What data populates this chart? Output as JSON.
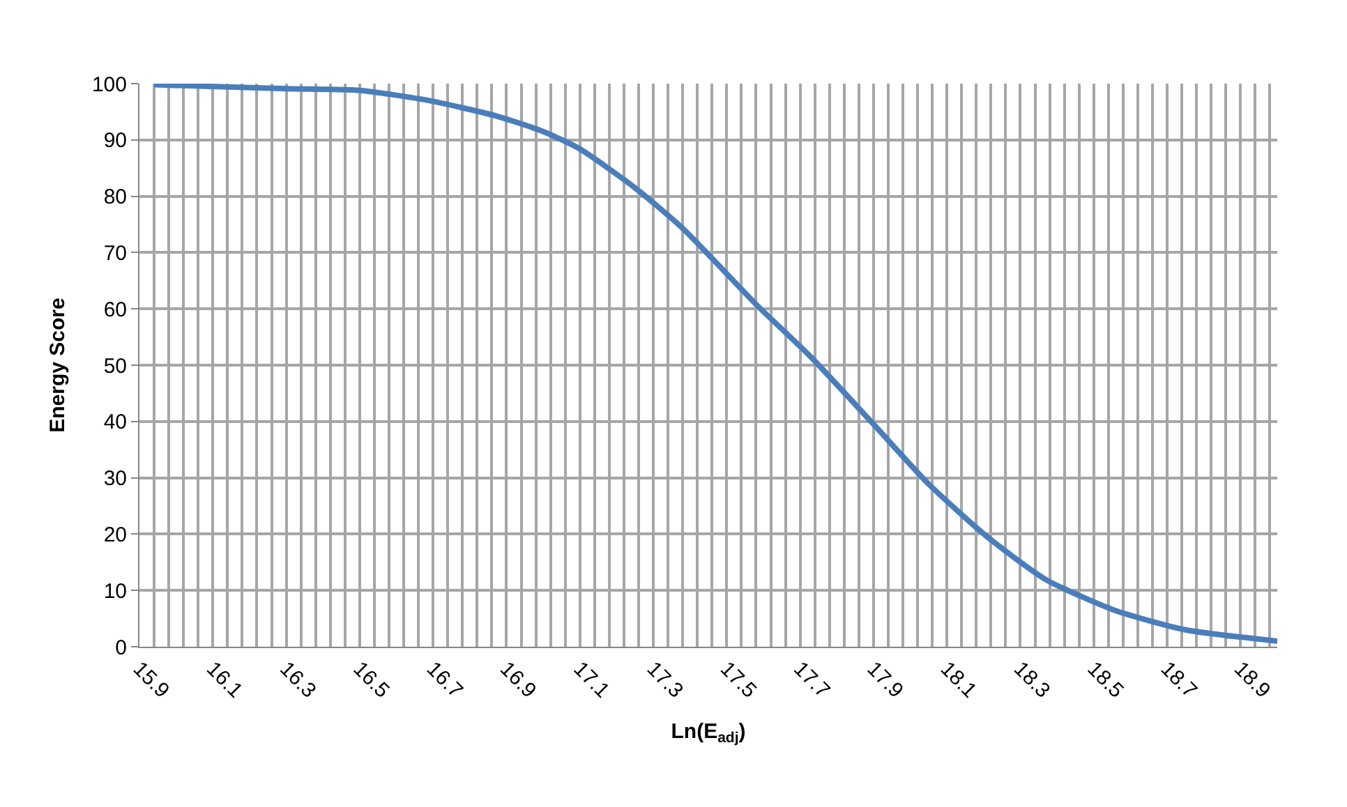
{
  "chart_data": {
    "type": "line",
    "xlabel": "Ln(E$_{adj}$)",
    "ylabel": "Energy Score",
    "x": [
      15.94,
      16.3,
      16.5,
      16.68,
      16.87,
      17.0,
      17.1,
      17.25,
      17.38,
      17.58,
      17.73,
      17.9,
      18.05,
      18.21,
      18.37,
      18.56,
      18.75,
      19.0
    ],
    "series": [
      {
        "color": "#4a7ebb",
        "values": [
          99.8,
          99.1,
          98.8,
          97.1,
          94.3,
          91.5,
          88.4,
          81.5,
          74.3,
          60.8,
          51.4,
          39.5,
          28.9,
          19.5,
          11.9,
          6.4,
          3.0,
          1.0
        ]
      }
    ],
    "xlim": [
      15.9,
      19.0
    ],
    "xticks": [
      15.9,
      {
        "value": 15.94,
        "label": null
      },
      {
        "value": 15.98,
        "label": null
      },
      {
        "value": 16.02,
        "label": null
      },
      {
        "value": 16.06,
        "label": null
      },
      16.1,
      {
        "value": 16.14,
        "label": null
      },
      {
        "value": 16.18,
        "label": null
      },
      {
        "value": 16.22,
        "label": null
      },
      {
        "value": 16.26,
        "label": null
      },
      16.3,
      {
        "value": 16.34,
        "label": null
      },
      {
        "value": 16.38,
        "label": null
      },
      {
        "value": 16.42,
        "label": null
      },
      {
        "value": 16.46,
        "label": null
      },
      16.5,
      {
        "value": 16.54,
        "label": null
      },
      {
        "value": 16.58,
        "label": null
      },
      {
        "value": 16.62,
        "label": null
      },
      {
        "value": 16.66,
        "label": null
      },
      16.7,
      {
        "value": 16.74,
        "label": null
      },
      {
        "value": 16.78,
        "label": null
      },
      {
        "value": 16.82,
        "label": null
      },
      {
        "value": 16.86,
        "label": null
      },
      16.9,
      {
        "value": 16.94,
        "label": null
      },
      {
        "value": 16.98,
        "label": null
      },
      {
        "value": 17.02,
        "label": null
      },
      {
        "value": 17.06,
        "label": null
      },
      17.1,
      {
        "value": 17.14,
        "label": null
      },
      {
        "value": 17.18,
        "label": null
      },
      {
        "value": 17.22,
        "label": null
      },
      {
        "value": 17.26,
        "label": null
      },
      17.3,
      {
        "value": 17.34,
        "label": null
      },
      {
        "value": 17.38,
        "label": null
      },
      {
        "value": 17.42,
        "label": null
      },
      {
        "value": 17.46,
        "label": null
      },
      17.5,
      {
        "value": 17.54,
        "label": null
      },
      {
        "value": 17.58,
        "label": null
      },
      {
        "value": 17.62,
        "label": null
      },
      {
        "value": 17.66,
        "label": null
      },
      17.7,
      {
        "value": 17.74,
        "label": null
      },
      {
        "value": 17.78,
        "label": null
      },
      {
        "value": 17.82,
        "label": null
      },
      {
        "value": 17.86,
        "label": null
      },
      17.9,
      {
        "value": 17.94,
        "label": null
      },
      {
        "value": 17.98,
        "label": null
      },
      {
        "value": 18.02,
        "label": null
      },
      {
        "value": 18.06,
        "label": null
      },
      18.1,
      {
        "value": 18.14,
        "label": null
      },
      {
        "value": 18.18,
        "label": null
      },
      {
        "value": 18.22,
        "label": null
      },
      {
        "value": 18.26,
        "label": null
      },
      18.3,
      {
        "value": 18.34,
        "label": null
      },
      {
        "value": 18.38,
        "label": null
      },
      {
        "value": 18.42,
        "label": null
      },
      {
        "value": 18.46,
        "label": null
      },
      18.5,
      {
        "value": 18.54,
        "label": null
      },
      {
        "value": 18.58,
        "label": null
      },
      {
        "value": 18.62,
        "label": null
      },
      {
        "value": 18.66,
        "label": null
      },
      18.7,
      {
        "value": 18.74,
        "label": null
      },
      {
        "value": 18.78,
        "label": null
      },
      {
        "value": 18.82,
        "label": null
      },
      {
        "value": 18.86,
        "label": null
      },
      18.9,
      {
        "value": 18.94,
        "label": null
      },
      {
        "value": 18.98,
        "label": null
      }
    ],
    "ylim": [
      0,
      100
    ],
    "yticks": [
      0,
      10,
      20,
      30,
      40,
      50,
      60,
      70,
      80,
      90,
      100
    ],
    "grid": true,
    "marker": "none",
    "line_style": "solid"
  }
}
